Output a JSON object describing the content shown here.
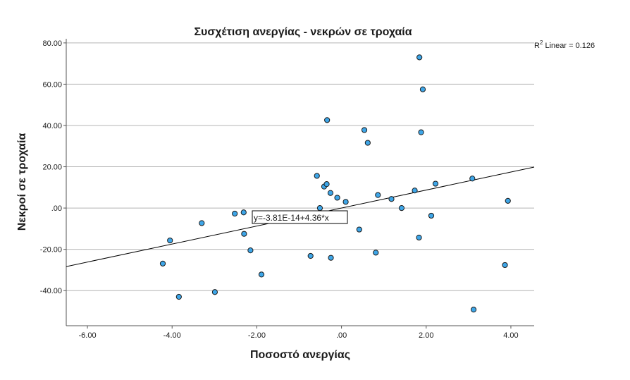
{
  "chart_data": {
    "type": "scatter",
    "title": "Συσχέτιση ανεργίας - νεκρών σε τροχαία",
    "xlabel": "Ποσοστό ανεργίας",
    "ylabel": "Νεκροί σε τροχαία",
    "xlim": [
      -6.5,
      4.55
    ],
    "ylim": [
      -57,
      82
    ],
    "x_ticks": [
      -6,
      -4,
      -2,
      0,
      2,
      4
    ],
    "x_tick_labels": [
      "-6.00",
      "-4.00",
      "-2.00",
      ".00",
      "2.00",
      "4.00"
    ],
    "y_ticks": [
      -40,
      -20,
      0,
      20,
      40,
      60,
      80
    ],
    "y_tick_labels": [
      "-40.00",
      "-20.00",
      ".00",
      "20.00",
      "40.00",
      "60.00",
      "80.00"
    ],
    "grid": "horizontal",
    "marker_color": "#3ea6e8",
    "points": [
      {
        "x": -4.22,
        "y": -26.9
      },
      {
        "x": -4.05,
        "y": -15.7
      },
      {
        "x": -3.84,
        "y": -43.0
      },
      {
        "x": -3.3,
        "y": -7.3
      },
      {
        "x": -2.99,
        "y": -40.7
      },
      {
        "x": -2.52,
        "y": -2.7
      },
      {
        "x": -2.31,
        "y": -2.1
      },
      {
        "x": -2.3,
        "y": -12.5
      },
      {
        "x": -2.15,
        "y": -20.5
      },
      {
        "x": -1.89,
        "y": -32.2
      },
      {
        "x": -0.73,
        "y": -23.2
      },
      {
        "x": -0.58,
        "y": 15.6
      },
      {
        "x": -0.51,
        "y": 0.0
      },
      {
        "x": -0.41,
        "y": 10.4
      },
      {
        "x": -0.35,
        "y": 11.6
      },
      {
        "x": -0.34,
        "y": 42.6
      },
      {
        "x": -0.26,
        "y": 7.3
      },
      {
        "x": -0.25,
        "y": -24.1
      },
      {
        "x": -0.1,
        "y": 5.0
      },
      {
        "x": 0.1,
        "y": 3.0
      },
      {
        "x": 0.42,
        "y": -10.4
      },
      {
        "x": 0.54,
        "y": 37.8
      },
      {
        "x": 0.62,
        "y": 31.6
      },
      {
        "x": 0.81,
        "y": -21.6
      },
      {
        "x": 0.86,
        "y": 6.3
      },
      {
        "x": 1.18,
        "y": 4.4
      },
      {
        "x": 1.42,
        "y": 0.0
      },
      {
        "x": 1.73,
        "y": 8.5
      },
      {
        "x": 1.83,
        "y": -14.3
      },
      {
        "x": 1.84,
        "y": 73.0
      },
      {
        "x": 1.88,
        "y": 36.7
      },
      {
        "x": 1.92,
        "y": 57.5
      },
      {
        "x": 2.12,
        "y": -3.7
      },
      {
        "x": 2.22,
        "y": 11.8
      },
      {
        "x": 3.09,
        "y": 14.3
      },
      {
        "x": 3.12,
        "y": -49.2
      },
      {
        "x": 3.86,
        "y": -27.6
      },
      {
        "x": 3.93,
        "y": 3.5
      }
    ],
    "fit_line": {
      "intercept": -3.81e-14,
      "slope": 4.36
    },
    "fit_label": "y=-3.81E-14+4.36*x",
    "r2_label": "R",
    "r2_sup": "2",
    "r2_text": " Linear = 0.126",
    "legend_placement": "top-right"
  }
}
